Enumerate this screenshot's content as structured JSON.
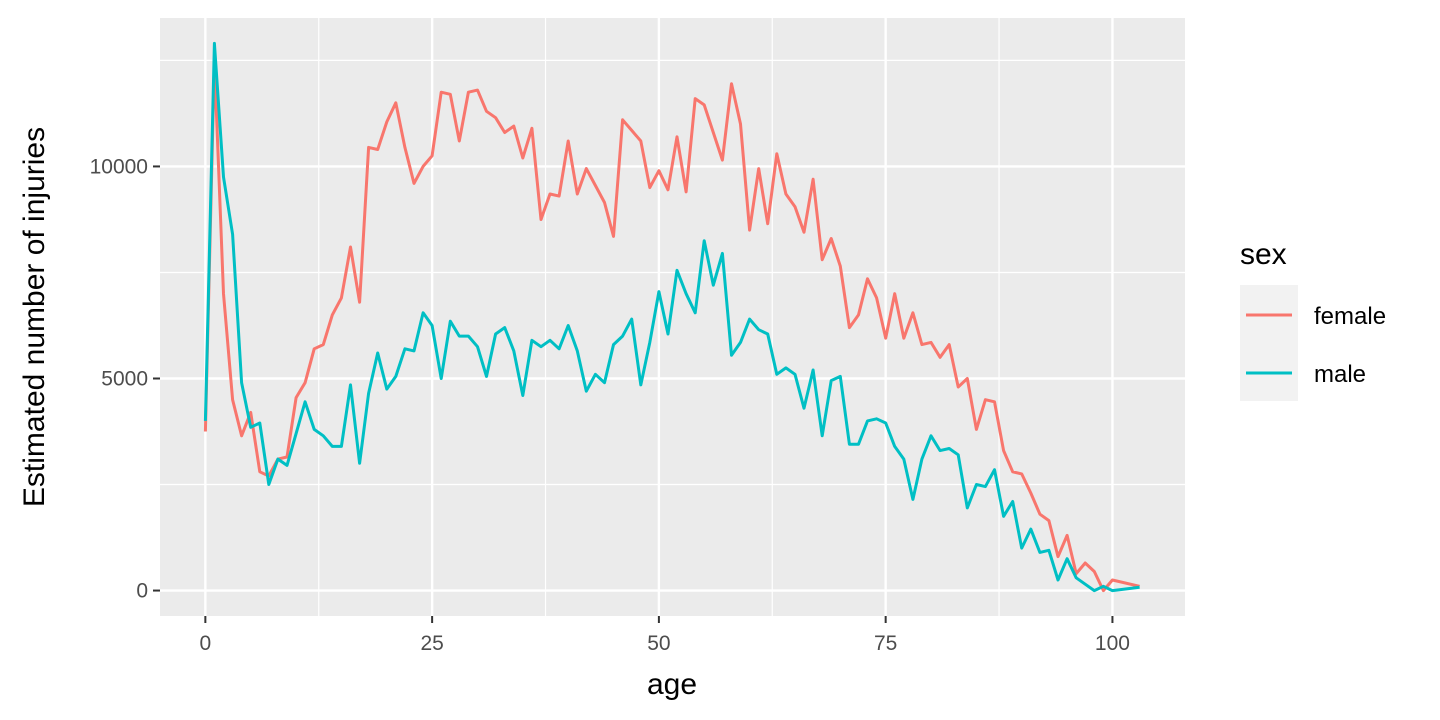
{
  "chart_data": {
    "type": "line",
    "xlabel": "age",
    "ylabel": "Estimated number of injuries",
    "xlim": [
      -5,
      108
    ],
    "ylim": [
      -600,
      13500
    ],
    "x_ticks": [
      0,
      25,
      50,
      75,
      100
    ],
    "y_ticks": [
      0,
      5000,
      10000
    ],
    "grid": true,
    "legend": {
      "title": "sex",
      "position": "right"
    },
    "series": [
      {
        "name": "female",
        "color": "#F8766D",
        "x": [
          0,
          1,
          2,
          3,
          4,
          5,
          6,
          7,
          8,
          9,
          10,
          11,
          12,
          13,
          14,
          15,
          16,
          17,
          18,
          19,
          20,
          21,
          22,
          23,
          24,
          25,
          26,
          27,
          28,
          29,
          30,
          31,
          32,
          33,
          34,
          35,
          36,
          37,
          38,
          39,
          40,
          41,
          42,
          43,
          44,
          45,
          46,
          47,
          48,
          49,
          50,
          51,
          52,
          53,
          54,
          55,
          56,
          57,
          58,
          59,
          60,
          61,
          62,
          63,
          64,
          65,
          66,
          67,
          68,
          69,
          70,
          71,
          72,
          73,
          74,
          75,
          76,
          77,
          78,
          79,
          80,
          81,
          82,
          83,
          84,
          85,
          86,
          87,
          88,
          89,
          90,
          91,
          92,
          93,
          94,
          95,
          96,
          97,
          98,
          99,
          100,
          103
        ],
        "values": [
          3750,
          12500,
          7000,
          4500,
          3650,
          4200,
          2800,
          2700,
          3100,
          3150,
          4550,
          4900,
          5700,
          5800,
          6500,
          6900,
          8100,
          6800,
          10450,
          10400,
          11050,
          11500,
          10450,
          9600,
          10000,
          10250,
          11750,
          11700,
          10600,
          11750,
          11800,
          11300,
          11150,
          10800,
          10950,
          10200,
          10900,
          8750,
          9350,
          9300,
          10600,
          9350,
          9950,
          9550,
          9150,
          8350,
          11100,
          10850,
          10600,
          9500,
          9900,
          9450,
          10700,
          9400,
          11600,
          11450,
          10800,
          10150,
          11950,
          11000,
          8500,
          9950,
          8650,
          10300,
          9350,
          9050,
          8450,
          9700,
          7800,
          8300,
          7650,
          6200,
          6500,
          7350,
          6900,
          5950,
          7000,
          5950,
          6550,
          5800,
          5850,
          5500,
          5800,
          4800,
          5000,
          3800,
          4500,
          4450,
          3300,
          2800,
          2750,
          2300,
          1800,
          1650,
          800,
          1300,
          400,
          650,
          450,
          0,
          250,
          100
        ]
      },
      {
        "name": "male",
        "color": "#00BFC4",
        "x": [
          0,
          1,
          2,
          3,
          4,
          5,
          6,
          7,
          8,
          9,
          10,
          11,
          12,
          13,
          14,
          15,
          16,
          17,
          18,
          19,
          20,
          21,
          22,
          23,
          24,
          25,
          26,
          27,
          28,
          29,
          30,
          31,
          32,
          33,
          34,
          35,
          36,
          37,
          38,
          39,
          40,
          41,
          42,
          43,
          44,
          45,
          46,
          47,
          48,
          49,
          50,
          51,
          52,
          53,
          54,
          55,
          56,
          57,
          58,
          59,
          60,
          61,
          62,
          63,
          64,
          65,
          66,
          67,
          68,
          69,
          70,
          71,
          72,
          73,
          74,
          75,
          76,
          77,
          78,
          79,
          80,
          81,
          82,
          83,
          84,
          85,
          86,
          87,
          88,
          89,
          90,
          91,
          92,
          93,
          94,
          95,
          96,
          97,
          98,
          99,
          100,
          103
        ],
        "values": [
          4000,
          12900,
          9750,
          8400,
          4900,
          3850,
          3950,
          2500,
          3100,
          2950,
          3700,
          4450,
          3800,
          3650,
          3400,
          3400,
          4850,
          3000,
          4650,
          5600,
          4750,
          5050,
          5700,
          5650,
          6550,
          6250,
          5000,
          6350,
          6000,
          6000,
          5750,
          5050,
          6050,
          6200,
          5650,
          4600,
          5900,
          5750,
          5900,
          5700,
          6250,
          5650,
          4700,
          5100,
          4900,
          5800,
          6000,
          6400,
          4850,
          5850,
          7050,
          6050,
          7550,
          7000,
          6550,
          8250,
          7200,
          7950,
          5550,
          5850,
          6400,
          6150,
          6050,
          5100,
          5250,
          5100,
          4300,
          5200,
          3650,
          4950,
          5050,
          3450,
          3450,
          4000,
          4050,
          3950,
          3400,
          3100,
          2150,
          3100,
          3650,
          3300,
          3350,
          3200,
          1950,
          2500,
          2450,
          2850,
          1750,
          2100,
          1000,
          1450,
          900,
          950,
          250,
          750,
          300,
          150,
          0,
          100,
          0,
          80
        ]
      }
    ]
  }
}
